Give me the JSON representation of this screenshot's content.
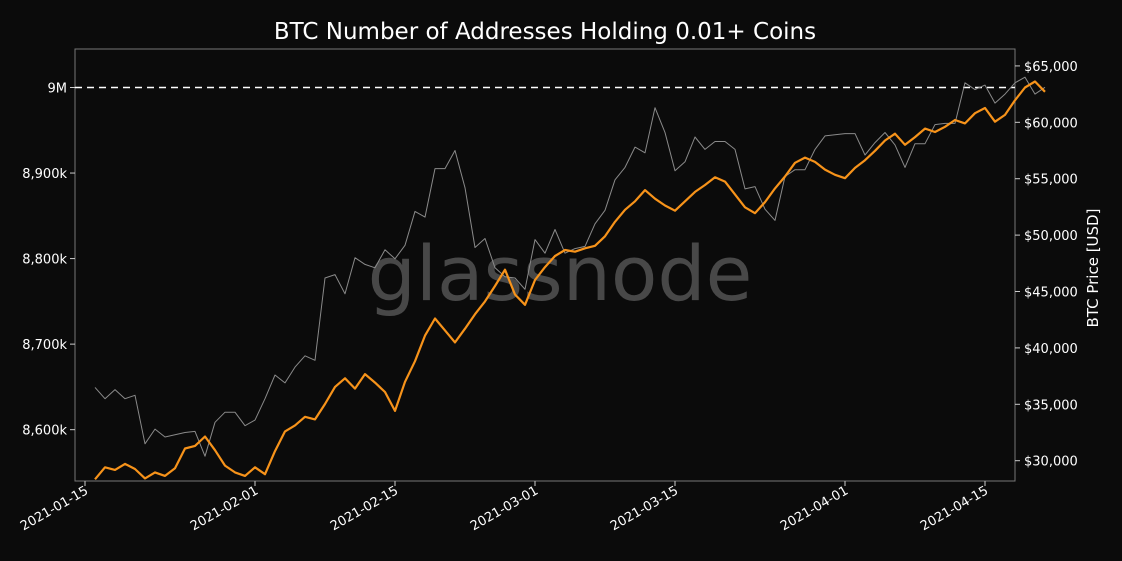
{
  "chart_data": {
    "type": "line",
    "title": "BTC Number of Addresses Holding 0.01+ Coins",
    "y_right_label": "BTC Price [USD]",
    "watermark": "glassnode",
    "xlim": [
      "2021-01-14",
      "2021-04-18"
    ],
    "ylim_left": [
      8540000,
      9045000
    ],
    "ylim_right": [
      28200,
      66500
    ],
    "x_ticks": [
      {
        "date": "2021-01-15",
        "label": "2021-01-15"
      },
      {
        "date": "2021-02-01",
        "label": "2021-02-01"
      },
      {
        "date": "2021-02-15",
        "label": "2021-02-15"
      },
      {
        "date": "2021-03-01",
        "label": "2021-03-01"
      },
      {
        "date": "2021-03-15",
        "label": "2021-03-15"
      },
      {
        "date": "2021-04-01",
        "label": "2021-04-01"
      },
      {
        "date": "2021-04-15",
        "label": "2021-04-15"
      }
    ],
    "y_left_ticks": [
      {
        "value": 8600000,
        "label": "8,600k"
      },
      {
        "value": 8700000,
        "label": "8,700k"
      },
      {
        "value": 8800000,
        "label": "8,800k"
      },
      {
        "value": 8900000,
        "label": "8,900k"
      },
      {
        "value": 9000000,
        "label": "9M"
      }
    ],
    "y_right_ticks": [
      {
        "value": 30000,
        "label": "$30,000"
      },
      {
        "value": 35000,
        "label": "$35,000"
      },
      {
        "value": 40000,
        "label": "$40,000"
      },
      {
        "value": 45000,
        "label": "$45,000"
      },
      {
        "value": 50000,
        "label": "$50,000"
      },
      {
        "value": 55000,
        "label": "$55,000"
      },
      {
        "value": 60000,
        "label": "$60,000"
      },
      {
        "value": 65000,
        "label": "$65,000"
      }
    ],
    "reference_line": {
      "axis": "left",
      "value": 9000000,
      "style": "dashed",
      "color": "#ffffff"
    },
    "grid": false,
    "series": [
      {
        "axis": "left",
        "color": "#f7931a",
        "points": [
          [
            "2021-01-16",
            8542000
          ],
          [
            "2021-01-17",
            8556000
          ],
          [
            "2021-01-18",
            8553000
          ],
          [
            "2021-01-19",
            8560000
          ],
          [
            "2021-01-20",
            8554000
          ],
          [
            "2021-01-21",
            8543000
          ],
          [
            "2021-01-22",
            8550000
          ],
          [
            "2021-01-23",
            8546000
          ],
          [
            "2021-01-24",
            8555000
          ],
          [
            "2021-01-25",
            8578000
          ],
          [
            "2021-01-26",
            8581000
          ],
          [
            "2021-01-27",
            8592000
          ],
          [
            "2021-01-28",
            8576000
          ],
          [
            "2021-01-29",
            8558000
          ],
          [
            "2021-01-30",
            8550000
          ],
          [
            "2021-01-31",
            8546000
          ],
          [
            "2021-02-01",
            8556000
          ],
          [
            "2021-02-02",
            8548000
          ],
          [
            "2021-02-03",
            8575000
          ],
          [
            "2021-02-04",
            8598000
          ],
          [
            "2021-02-05",
            8605000
          ],
          [
            "2021-02-06",
            8615000
          ],
          [
            "2021-02-07",
            8612000
          ],
          [
            "2021-02-08",
            8630000
          ],
          [
            "2021-02-09",
            8650000
          ],
          [
            "2021-02-10",
            8660000
          ],
          [
            "2021-02-11",
            8648000
          ],
          [
            "2021-02-12",
            8665000
          ],
          [
            "2021-02-13",
            8655000
          ],
          [
            "2021-02-14",
            8644000
          ],
          [
            "2021-02-15",
            8622000
          ],
          [
            "2021-02-16",
            8656000
          ],
          [
            "2021-02-17",
            8680000
          ],
          [
            "2021-02-18",
            8710000
          ],
          [
            "2021-02-19",
            8730000
          ],
          [
            "2021-02-20",
            8716000
          ],
          [
            "2021-02-21",
            8702000
          ],
          [
            "2021-02-22",
            8718000
          ],
          [
            "2021-02-23",
            8735000
          ],
          [
            "2021-02-24",
            8750000
          ],
          [
            "2021-02-25",
            8768000
          ],
          [
            "2021-02-26",
            8787000
          ],
          [
            "2021-02-27",
            8758000
          ],
          [
            "2021-02-28",
            8746000
          ],
          [
            "2021-03-01",
            8775000
          ],
          [
            "2021-03-02",
            8790000
          ],
          [
            "2021-03-03",
            8803000
          ],
          [
            "2021-03-04",
            8810000
          ],
          [
            "2021-03-05",
            8808000
          ],
          [
            "2021-03-06",
            8812000
          ],
          [
            "2021-03-07",
            8815000
          ],
          [
            "2021-03-08",
            8826000
          ],
          [
            "2021-03-09",
            8843000
          ],
          [
            "2021-03-10",
            8857000
          ],
          [
            "2021-03-11",
            8867000
          ],
          [
            "2021-03-12",
            8880000
          ],
          [
            "2021-03-13",
            8870000
          ],
          [
            "2021-03-14",
            8862000
          ],
          [
            "2021-03-15",
            8856000
          ],
          [
            "2021-03-16",
            8867000
          ],
          [
            "2021-03-17",
            8878000
          ],
          [
            "2021-03-18",
            8886000
          ],
          [
            "2021-03-19",
            8895000
          ],
          [
            "2021-03-20",
            8890000
          ],
          [
            "2021-03-21",
            8875000
          ],
          [
            "2021-03-22",
            8860000
          ],
          [
            "2021-03-23",
            8853000
          ],
          [
            "2021-03-24",
            8866000
          ],
          [
            "2021-03-25",
            8882000
          ],
          [
            "2021-03-26",
            8896000
          ],
          [
            "2021-03-27",
            8912000
          ],
          [
            "2021-03-28",
            8918000
          ],
          [
            "2021-03-29",
            8913000
          ],
          [
            "2021-03-30",
            8904000
          ],
          [
            "2021-03-31",
            8898000
          ],
          [
            "2021-04-01",
            8894000
          ],
          [
            "2021-04-02",
            8906000
          ],
          [
            "2021-04-03",
            8915000
          ],
          [
            "2021-04-04",
            8926000
          ],
          [
            "2021-04-05",
            8938000
          ],
          [
            "2021-04-06",
            8946000
          ],
          [
            "2021-04-07",
            8933000
          ],
          [
            "2021-04-08",
            8942000
          ],
          [
            "2021-04-09",
            8952000
          ],
          [
            "2021-04-10",
            8948000
          ],
          [
            "2021-04-11",
            8954000
          ],
          [
            "2021-04-12",
            8962000
          ],
          [
            "2021-04-13",
            8958000
          ],
          [
            "2021-04-14",
            8970000
          ],
          [
            "2021-04-15",
            8976000
          ],
          [
            "2021-04-16",
            8960000
          ],
          [
            "2021-04-17",
            8968000
          ],
          [
            "2021-04-18",
            8985000
          ],
          [
            "2021-04-19",
            9000000
          ],
          [
            "2021-04-20",
            9007000
          ],
          [
            "2021-04-21",
            8995000
          ]
        ]
      },
      {
        "axis": "right",
        "color": "#8a8a8a",
        "points": [
          [
            "2021-01-16",
            36500
          ],
          [
            "2021-01-17",
            35500
          ],
          [
            "2021-01-18",
            36300
          ],
          [
            "2021-01-19",
            35500
          ],
          [
            "2021-01-20",
            35800
          ],
          [
            "2021-01-21",
            31500
          ],
          [
            "2021-01-22",
            32800
          ],
          [
            "2021-01-23",
            32100
          ],
          [
            "2021-01-24",
            32300
          ],
          [
            "2021-01-25",
            32500
          ],
          [
            "2021-01-26",
            32600
          ],
          [
            "2021-01-27",
            30400
          ],
          [
            "2021-01-28",
            33400
          ],
          [
            "2021-01-29",
            34300
          ],
          [
            "2021-01-30",
            34300
          ],
          [
            "2021-01-31",
            33100
          ],
          [
            "2021-02-01",
            33600
          ],
          [
            "2021-02-02",
            35500
          ],
          [
            "2021-02-03",
            37600
          ],
          [
            "2021-02-04",
            36900
          ],
          [
            "2021-02-05",
            38300
          ],
          [
            "2021-02-06",
            39300
          ],
          [
            "2021-02-07",
            38900
          ],
          [
            "2021-02-08",
            46200
          ],
          [
            "2021-02-09",
            46500
          ],
          [
            "2021-02-10",
            44800
          ],
          [
            "2021-02-11",
            48000
          ],
          [
            "2021-02-12",
            47400
          ],
          [
            "2021-02-13",
            47100
          ],
          [
            "2021-02-14",
            48700
          ],
          [
            "2021-02-15",
            47900
          ],
          [
            "2021-02-16",
            49100
          ],
          [
            "2021-02-17",
            52100
          ],
          [
            "2021-02-18",
            51600
          ],
          [
            "2021-02-19",
            55900
          ],
          [
            "2021-02-20",
            55900
          ],
          [
            "2021-02-21",
            57500
          ],
          [
            "2021-02-22",
            54200
          ],
          [
            "2021-02-23",
            48900
          ],
          [
            "2021-02-24",
            49700
          ],
          [
            "2021-02-25",
            47100
          ],
          [
            "2021-02-26",
            46300
          ],
          [
            "2021-02-27",
            46200
          ],
          [
            "2021-02-28",
            45200
          ],
          [
            "2021-03-01",
            49600
          ],
          [
            "2021-03-02",
            48400
          ],
          [
            "2021-03-03",
            50500
          ],
          [
            "2021-03-04",
            48400
          ],
          [
            "2021-03-05",
            48800
          ],
          [
            "2021-03-06",
            49000
          ],
          [
            "2021-03-07",
            51000
          ],
          [
            "2021-03-08",
            52200
          ],
          [
            "2021-03-09",
            54900
          ],
          [
            "2021-03-10",
            56000
          ],
          [
            "2021-03-11",
            57800
          ],
          [
            "2021-03-12",
            57300
          ],
          [
            "2021-03-13",
            61300
          ],
          [
            "2021-03-14",
            59100
          ],
          [
            "2021-03-15",
            55700
          ],
          [
            "2021-03-16",
            56500
          ],
          [
            "2021-03-17",
            58700
          ],
          [
            "2021-03-18",
            57600
          ],
          [
            "2021-03-19",
            58300
          ],
          [
            "2021-03-20",
            58300
          ],
          [
            "2021-03-21",
            57600
          ],
          [
            "2021-03-22",
            54100
          ],
          [
            "2021-03-23",
            54300
          ],
          [
            "2021-03-24",
            52300
          ],
          [
            "2021-03-25",
            51300
          ],
          [
            "2021-03-26",
            55200
          ],
          [
            "2021-03-27",
            55800
          ],
          [
            "2021-03-28",
            55800
          ],
          [
            "2021-03-29",
            57600
          ],
          [
            "2021-03-30",
            58800
          ],
          [
            "2021-03-31",
            58900
          ],
          [
            "2021-04-01",
            59000
          ],
          [
            "2021-04-02",
            59000
          ],
          [
            "2021-04-03",
            57100
          ],
          [
            "2021-04-04",
            58200
          ],
          [
            "2021-04-05",
            59100
          ],
          [
            "2021-04-06",
            58000
          ],
          [
            "2021-04-07",
            56000
          ],
          [
            "2021-04-08",
            58100
          ],
          [
            "2021-04-09",
            58100
          ],
          [
            "2021-04-10",
            59800
          ],
          [
            "2021-04-11",
            59900
          ],
          [
            "2021-04-12",
            59900
          ],
          [
            "2021-04-13",
            63500
          ],
          [
            "2021-04-14",
            62900
          ],
          [
            "2021-04-15",
            63300
          ],
          [
            "2021-04-16",
            61700
          ],
          [
            "2021-04-17",
            62500
          ],
          [
            "2021-04-18",
            63500
          ],
          [
            "2021-04-19",
            64000
          ],
          [
            "2021-04-20",
            62500
          ],
          [
            "2021-04-21",
            63100
          ]
        ]
      }
    ]
  }
}
